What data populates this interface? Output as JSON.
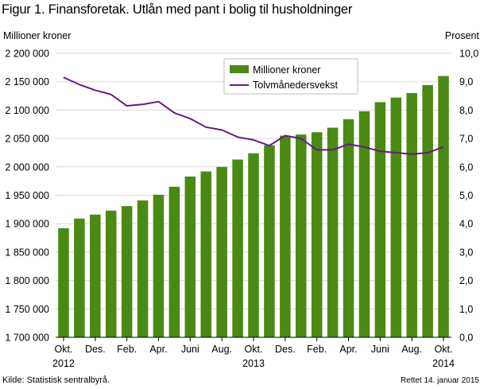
{
  "figure": {
    "title": "Figur 1. Finansforetak. Utlån med pant i bolig til husholdninger",
    "source": "Kilde: Statistisk sentralbyrå.",
    "corrected": "Rettet 14. januar 2015"
  },
  "chart_data": {
    "type": "bar",
    "title": "Figur 1. Finansforetak. Utlån med pant i bolig til husholdninger",
    "y_left_label": "Millioner  kroner",
    "y_right_label": "Prosent",
    "ylim_left": [
      1700000,
      2200000
    ],
    "ylim_right": [
      0,
      10
    ],
    "y_left_ticks": [
      "1 700 000",
      "1 750 000",
      "1 800 000",
      "1 850 000",
      "1 900 000",
      "1 950 000",
      "2 000 000",
      "2 050 000",
      "2 100 000",
      "2 150 000",
      "2 200 000"
    ],
    "y_right_ticks": [
      "0,0",
      "1,0",
      "2,0",
      "3,0",
      "4,0",
      "5,0",
      "6,0",
      "7,0",
      "8,0",
      "9,0",
      "10,0"
    ],
    "x_tick_labels": [
      {
        "index": 0,
        "label": "Okt.",
        "year": "2012"
      },
      {
        "index": 2,
        "label": "Des.",
        "year": ""
      },
      {
        "index": 4,
        "label": "Feb.",
        "year": ""
      },
      {
        "index": 6,
        "label": "Apr.",
        "year": ""
      },
      {
        "index": 8,
        "label": "Juni",
        "year": ""
      },
      {
        "index": 10,
        "label": "Aug.",
        "year": ""
      },
      {
        "index": 12,
        "label": "Okt.",
        "year": "2013"
      },
      {
        "index": 14,
        "label": "Des.",
        "year": ""
      },
      {
        "index": 16,
        "label": "Feb.",
        "year": ""
      },
      {
        "index": 18,
        "label": "Apr.",
        "year": ""
      },
      {
        "index": 20,
        "label": "Juni",
        "year": ""
      },
      {
        "index": 22,
        "label": "Aug.",
        "year": ""
      },
      {
        "index": 24,
        "label": "Okt.",
        "year": "2014"
      }
    ],
    "categories": [
      "Okt. 2012",
      "Nov. 2012",
      "Des. 2012",
      "Jan. 2013",
      "Feb. 2013",
      "Mar. 2013",
      "Apr. 2013",
      "Mai 2013",
      "Juni 2013",
      "Juli 2013",
      "Aug. 2013",
      "Sep. 2013",
      "Okt. 2013",
      "Nov. 2013",
      "Des. 2013",
      "Jan. 2014",
      "Feb. 2014",
      "Mar. 2014",
      "Apr. 2014",
      "Mai 2014",
      "Juni 2014",
      "Juli 2014",
      "Aug. 2014",
      "Sep. 2014",
      "Okt. 2014"
    ],
    "series": [
      {
        "name": "Millioner kroner",
        "kind": "bar",
        "axis": "left",
        "color": "#4a8a14",
        "values": [
          1892000,
          1909000,
          1916000,
          1923000,
          1931000,
          1941000,
          1951000,
          1965000,
          1983000,
          1992000,
          2000000,
          2013000,
          2024000,
          2038000,
          2055000,
          2057000,
          2061000,
          2069000,
          2084000,
          2098000,
          2114000,
          2122000,
          2130000,
          2144000,
          2160000
        ]
      },
      {
        "name": "Tolvmånedersvekst",
        "kind": "line",
        "axis": "right",
        "color": "#6a1a84",
        "values": [
          9.15,
          8.9,
          8.7,
          8.55,
          8.15,
          8.2,
          8.3,
          7.9,
          7.7,
          7.4,
          7.3,
          7.05,
          6.95,
          6.75,
          7.1,
          7.0,
          6.6,
          6.6,
          6.8,
          6.7,
          6.55,
          6.5,
          6.45,
          6.5,
          6.7
        ]
      }
    ],
    "legend": "top-center",
    "grid": true
  }
}
